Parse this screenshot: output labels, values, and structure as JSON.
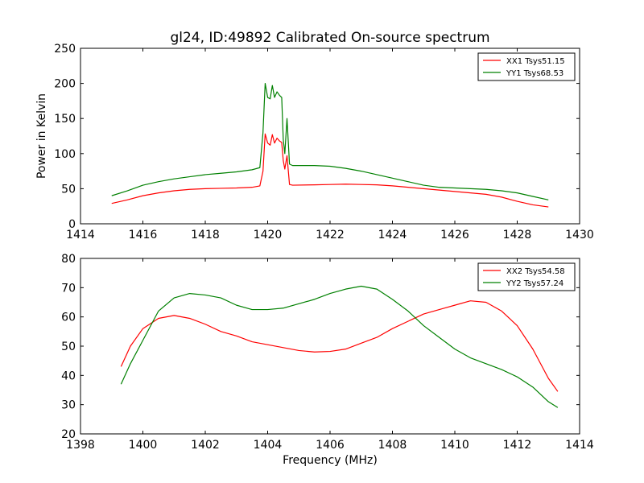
{
  "figure_title": "gl24, ID:49892 Calibrated On-source spectrum",
  "colors": {
    "xx": "#ff0000",
    "yy": "#008000"
  },
  "chart_data": [
    {
      "type": "line",
      "title": "gl24, ID:49892 Calibrated On-source spectrum",
      "xlabel": "",
      "ylabel": "Power in Kelvin",
      "xlim": [
        1414,
        1430
      ],
      "ylim": [
        0,
        250
      ],
      "xticks": [
        1414,
        1416,
        1418,
        1420,
        1422,
        1424,
        1426,
        1428,
        1430
      ],
      "yticks": [
        0,
        50,
        100,
        150,
        200,
        250
      ],
      "legend": "top-right",
      "grid": false,
      "series": [
        {
          "name": "XX1 Tsys51.15",
          "color": "#ff0000",
          "points": [
            [
              1415.0,
              29
            ],
            [
              1415.5,
              34
            ],
            [
              1416.0,
              40
            ],
            [
              1416.5,
              44
            ],
            [
              1417.0,
              47
            ],
            [
              1417.5,
              49
            ],
            [
              1418.0,
              50
            ],
            [
              1418.5,
              50.5
            ],
            [
              1419.0,
              51
            ],
            [
              1419.5,
              52
            ],
            [
              1419.75,
              54
            ],
            [
              1419.85,
              75
            ],
            [
              1419.92,
              128
            ],
            [
              1420.0,
              115
            ],
            [
              1420.08,
              112
            ],
            [
              1420.15,
              127
            ],
            [
              1420.22,
              115
            ],
            [
              1420.3,
              122
            ],
            [
              1420.38,
              118
            ],
            [
              1420.45,
              116
            ],
            [
              1420.5,
              90
            ],
            [
              1420.55,
              78
            ],
            [
              1420.62,
              97
            ],
            [
              1420.7,
              56
            ],
            [
              1420.8,
              55
            ],
            [
              1421.5,
              55.5
            ],
            [
              1422.0,
              56
            ],
            [
              1422.5,
              56.5
            ],
            [
              1423.0,
              56
            ],
            [
              1423.5,
              55.5
            ],
            [
              1424.0,
              54
            ],
            [
              1424.5,
              52
            ],
            [
              1425.0,
              50
            ],
            [
              1425.5,
              48
            ],
            [
              1426.0,
              46
            ],
            [
              1426.5,
              44
            ],
            [
              1427.0,
              42
            ],
            [
              1427.5,
              38
            ],
            [
              1428.0,
              32
            ],
            [
              1428.5,
              27
            ],
            [
              1429.0,
              24
            ]
          ]
        },
        {
          "name": "YY1 Tsys68.53",
          "color": "#008000",
          "points": [
            [
              1415.0,
              40
            ],
            [
              1415.5,
              47
            ],
            [
              1416.0,
              55
            ],
            [
              1416.5,
              60
            ],
            [
              1417.0,
              64
            ],
            [
              1417.5,
              67
            ],
            [
              1418.0,
              70
            ],
            [
              1418.5,
              72
            ],
            [
              1419.0,
              74
            ],
            [
              1419.5,
              77
            ],
            [
              1419.75,
              80
            ],
            [
              1419.85,
              130
            ],
            [
              1419.92,
              200
            ],
            [
              1420.0,
              180
            ],
            [
              1420.08,
              178
            ],
            [
              1420.15,
              197
            ],
            [
              1420.22,
              180
            ],
            [
              1420.3,
              188
            ],
            [
              1420.38,
              183
            ],
            [
              1420.45,
              180
            ],
            [
              1420.5,
              120
            ],
            [
              1420.55,
              100
            ],
            [
              1420.62,
              150
            ],
            [
              1420.7,
              85
            ],
            [
              1420.8,
              83
            ],
            [
              1421.5,
              83
            ],
            [
              1422.0,
              82
            ],
            [
              1422.5,
              79
            ],
            [
              1423.0,
              75
            ],
            [
              1423.5,
              70
            ],
            [
              1424.0,
              65
            ],
            [
              1424.5,
              60
            ],
            [
              1425.0,
              55
            ],
            [
              1425.5,
              52
            ],
            [
              1426.0,
              51
            ],
            [
              1426.5,
              50
            ],
            [
              1427.0,
              49
            ],
            [
              1427.5,
              47
            ],
            [
              1428.0,
              44
            ],
            [
              1428.5,
              39
            ],
            [
              1429.0,
              34
            ]
          ]
        }
      ]
    },
    {
      "type": "line",
      "title": "",
      "xlabel": "Frequency (MHz)",
      "ylabel": "",
      "xlim": [
        1398,
        1414
      ],
      "ylim": [
        20,
        80
      ],
      "xticks": [
        1398,
        1400,
        1402,
        1404,
        1406,
        1408,
        1410,
        1412,
        1414
      ],
      "yticks": [
        20,
        30,
        40,
        50,
        60,
        70,
        80
      ],
      "legend": "top-right",
      "grid": false,
      "series": [
        {
          "name": "XX2 Tsys54.58",
          "color": "#ff0000",
          "points": [
            [
              1399.3,
              43
            ],
            [
              1399.6,
              50
            ],
            [
              1400.0,
              56
            ],
            [
              1400.5,
              59.5
            ],
            [
              1401.0,
              60.5
            ],
            [
              1401.5,
              59.5
            ],
            [
              1402.0,
              57.5
            ],
            [
              1402.5,
              55
            ],
            [
              1403.0,
              53.5
            ],
            [
              1403.5,
              51.5
            ],
            [
              1404.0,
              50.5
            ],
            [
              1404.5,
              49.5
            ],
            [
              1405.0,
              48.5
            ],
            [
              1405.5,
              48
            ],
            [
              1406.0,
              48.2
            ],
            [
              1406.5,
              49
            ],
            [
              1407.0,
              51
            ],
            [
              1407.5,
              53
            ],
            [
              1408.0,
              56
            ],
            [
              1408.5,
              58.5
            ],
            [
              1409.0,
              61
            ],
            [
              1409.5,
              62.5
            ],
            [
              1410.0,
              64
            ],
            [
              1410.5,
              65.5
            ],
            [
              1411.0,
              65
            ],
            [
              1411.5,
              62
            ],
            [
              1412.0,
              57
            ],
            [
              1412.5,
              49
            ],
            [
              1413.0,
              39
            ],
            [
              1413.3,
              34.5
            ]
          ]
        },
        {
          "name": "YY2 Tsys57.24",
          "color": "#008000",
          "points": [
            [
              1399.3,
              37
            ],
            [
              1399.6,
              44
            ],
            [
              1400.0,
              52
            ],
            [
              1400.5,
              62
            ],
            [
              1401.0,
              66.5
            ],
            [
              1401.5,
              68
            ],
            [
              1402.0,
              67.5
            ],
            [
              1402.5,
              66.5
            ],
            [
              1403.0,
              64
            ],
            [
              1403.5,
              62.5
            ],
            [
              1404.0,
              62.5
            ],
            [
              1404.5,
              63
            ],
            [
              1405.0,
              64.5
            ],
            [
              1405.5,
              66
            ],
            [
              1406.0,
              68
            ],
            [
              1406.5,
              69.5
            ],
            [
              1407.0,
              70.5
            ],
            [
              1407.5,
              69.5
            ],
            [
              1408.0,
              66
            ],
            [
              1408.5,
              62
            ],
            [
              1409.0,
              57
            ],
            [
              1409.5,
              53
            ],
            [
              1410.0,
              49
            ],
            [
              1410.5,
              46
            ],
            [
              1411.0,
              44
            ],
            [
              1411.5,
              42
            ],
            [
              1412.0,
              39.5
            ],
            [
              1412.5,
              36
            ],
            [
              1413.0,
              31
            ],
            [
              1413.3,
              29
            ]
          ]
        }
      ]
    }
  ]
}
